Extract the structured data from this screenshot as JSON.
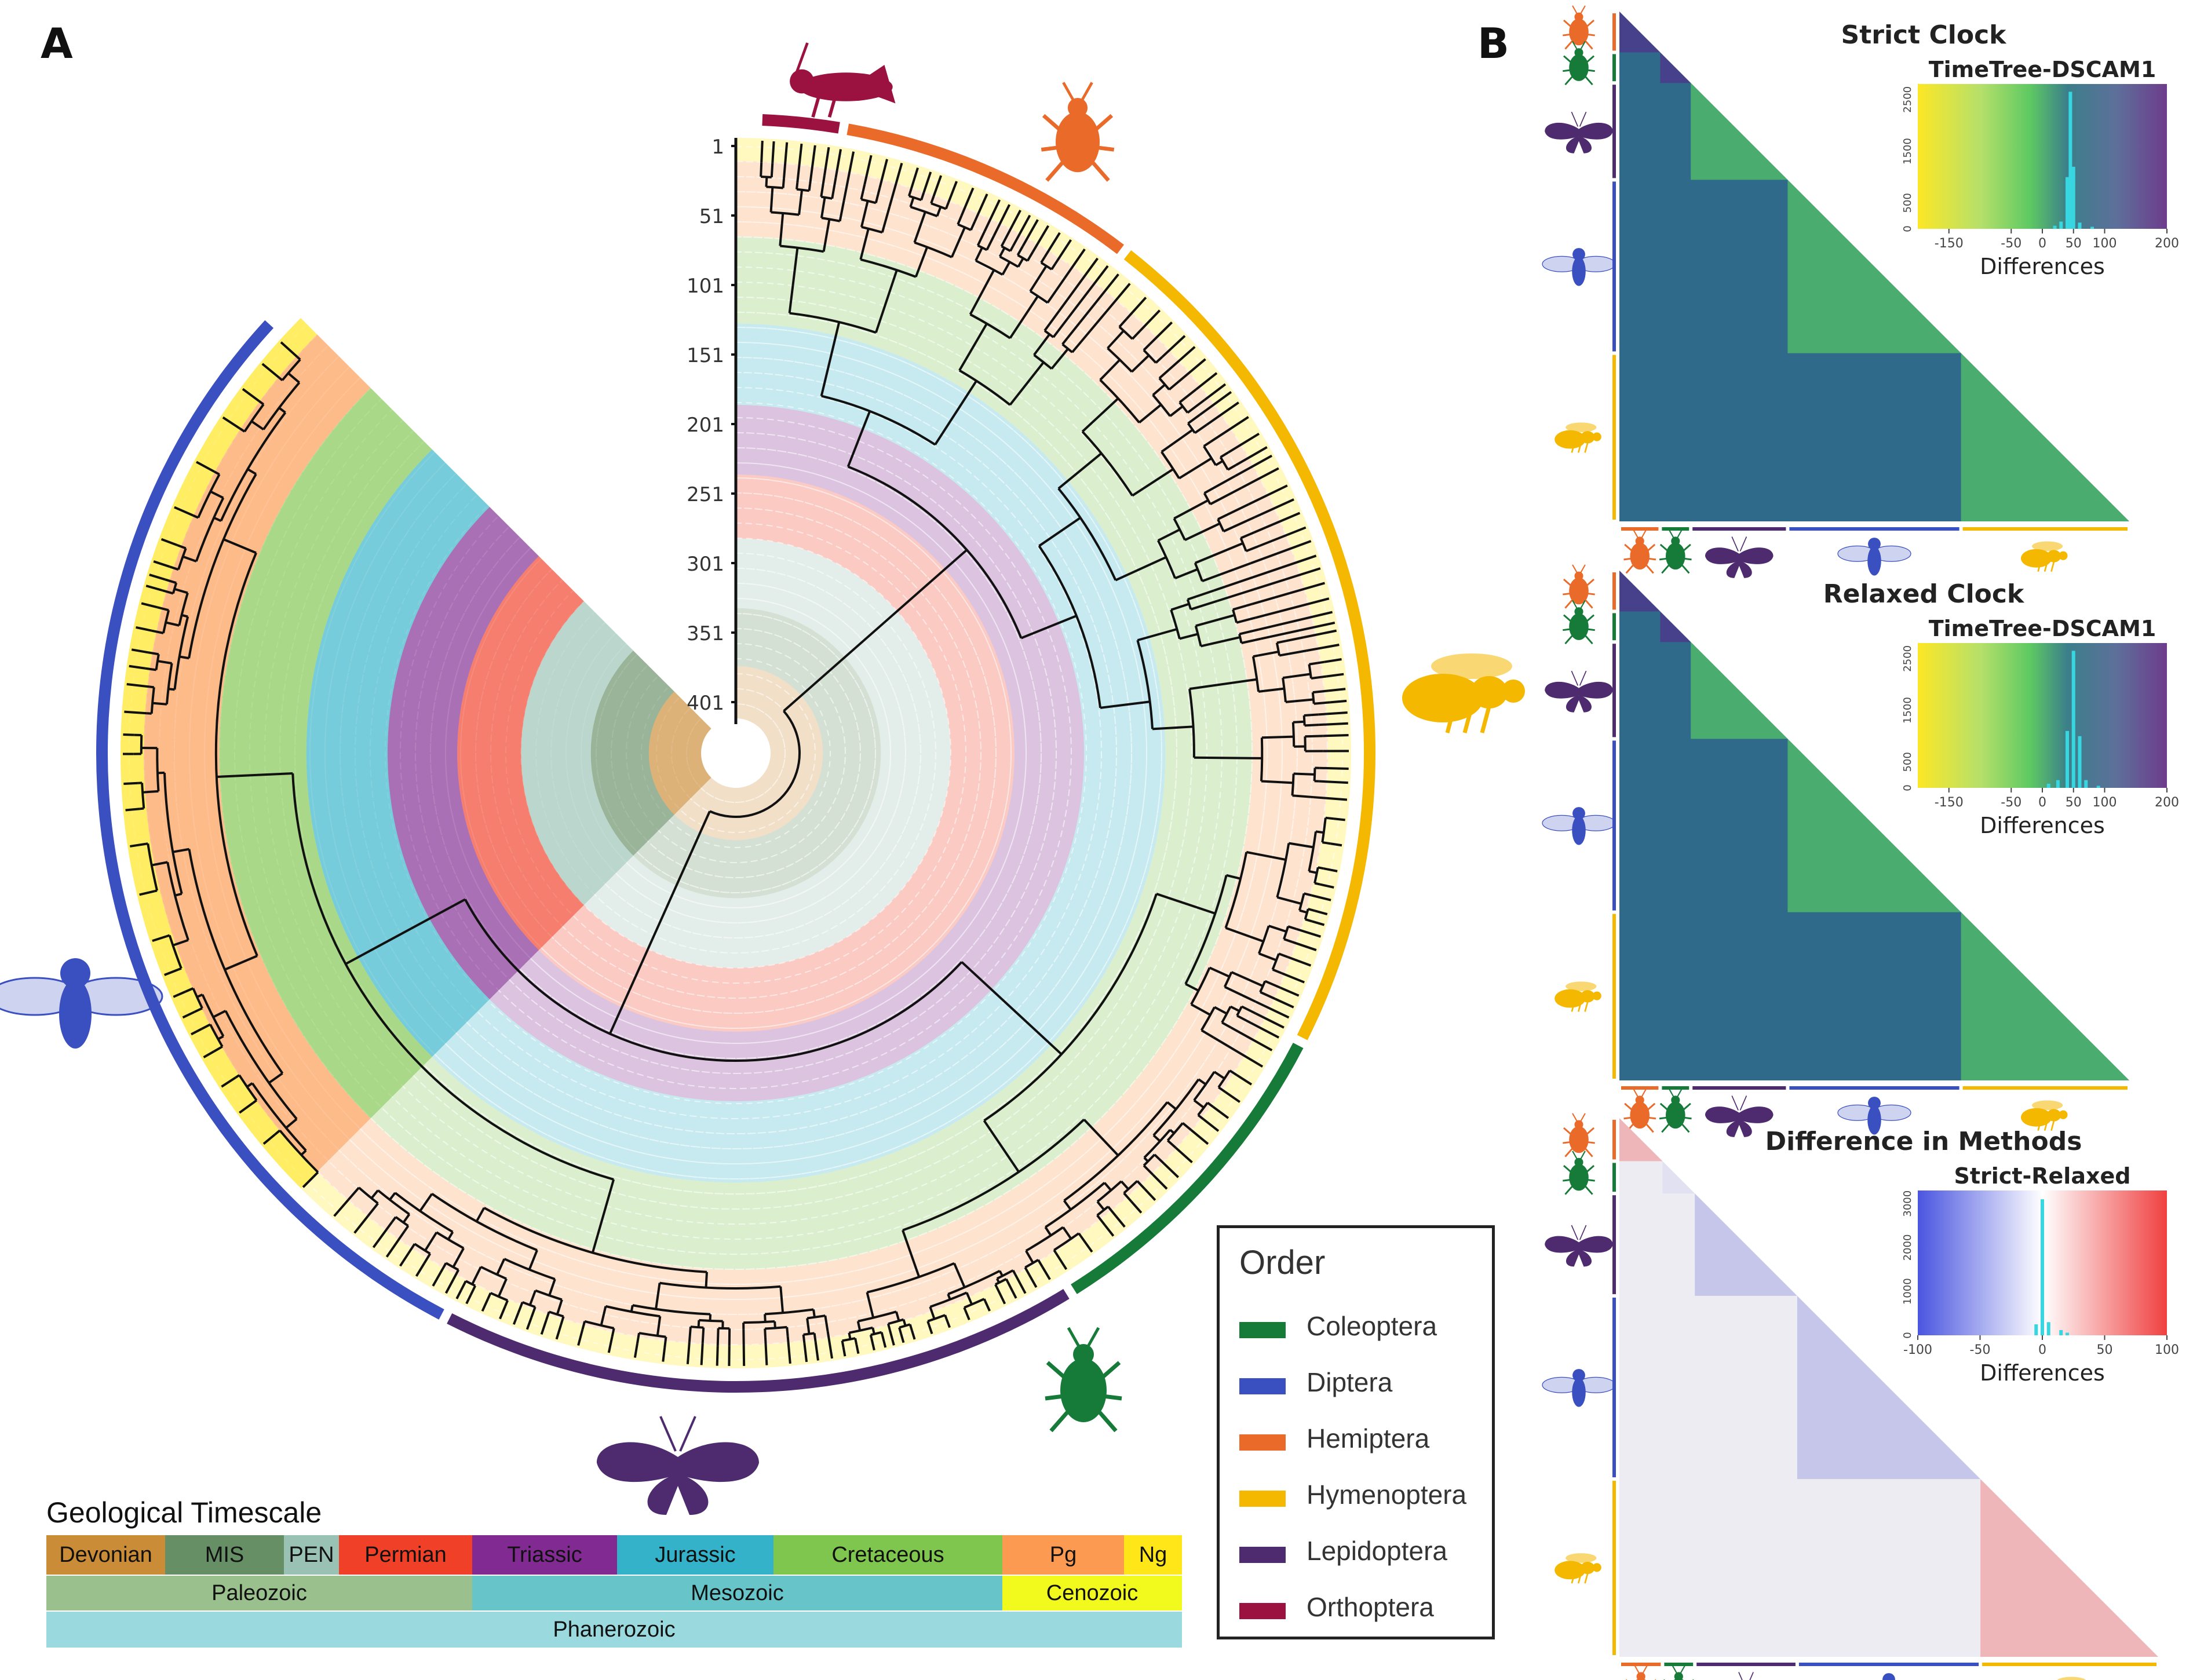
{
  "panels": {
    "a_label": "A",
    "b_label": "B"
  },
  "colors": {
    "Coleoptera": "#167a39",
    "Diptera": "#3a4fc0",
    "Hemiptera": "#ea6a2a",
    "Hymenoptera": "#f4b800",
    "Lepidoptera": "#4e2a6e",
    "Orthoptera": "#9b1240"
  },
  "chart_data": [
    {
      "type": "other",
      "subtype": "circular-phylogenetic-tree",
      "radial_axis_ticks": [
        "1",
        "51",
        "101",
        "151",
        "201",
        "251",
        "301",
        "351",
        "401"
      ],
      "geological_bands_center_to_rim": [
        "Devonian",
        "MIS",
        "PEN",
        "Permian",
        "Triassic",
        "Jurassic",
        "Cretaceous",
        "Pg",
        "Ng"
      ],
      "order_arcs": [
        {
          "order": "Orthoptera",
          "color": "#9b1240"
        },
        {
          "order": "Hemiptera",
          "color": "#ea6a2a"
        },
        {
          "order": "Hymenoptera",
          "color": "#f4b800"
        },
        {
          "order": "Coleoptera",
          "color": "#167a39"
        },
        {
          "order": "Lepidoptera",
          "color": "#4e2a6e"
        },
        {
          "order": "Diptera",
          "color": "#3a4fc0"
        }
      ],
      "legend": {
        "title": "Order",
        "entries": [
          {
            "label": "Coleoptera",
            "color": "#167a39"
          },
          {
            "label": "Diptera",
            "color": "#3a4fc0"
          },
          {
            "label": "Hemiptera",
            "color": "#ea6a2a"
          },
          {
            "label": "Hymenoptera",
            "color": "#f4b800"
          },
          {
            "label": "Lepidoptera",
            "color": "#4e2a6e"
          },
          {
            "label": "Orthoptera",
            "color": "#9b1240"
          }
        ]
      },
      "geological_timescale": {
        "title": "Geological Timescale",
        "periods": [
          {
            "label": "Devonian",
            "color": "#cb8c37"
          },
          {
            "label": "MIS",
            "color": "#678f66"
          },
          {
            "label": "PEN",
            "color": "#99c2b5"
          },
          {
            "label": "Permian",
            "color": "#f04028"
          },
          {
            "label": "Triassic",
            "color": "#812b92"
          },
          {
            "label": "Jurassic",
            "color": "#34b2c9"
          },
          {
            "label": "Cretaceous",
            "color": "#7fc64e"
          },
          {
            "label": "Pg",
            "color": "#fd9a52"
          },
          {
            "label": "Ng",
            "color": "#ffe619"
          }
        ],
        "eras": [
          {
            "label": "Paleozoic",
            "color": "#99c08d"
          },
          {
            "label": "Mesozoic",
            "color": "#67c5ca"
          },
          {
            "label": "Cenozoic",
            "color": "#f2f91d"
          }
        ],
        "eon": {
          "label": "Phanerozoic",
          "color": "#9ad9dd"
        }
      }
    },
    {
      "type": "heatmap",
      "title": "Strict Clock",
      "inset": {
        "title": "TimeTree-DSCAM1",
        "type": "histogram",
        "xlabel": "Differences",
        "xlim": [
          -200,
          200
        ],
        "x_ticks": [
          "-150",
          "-50",
          "0",
          "50",
          "100",
          "200"
        ],
        "y_ticks": [
          "0",
          "500",
          "1500",
          "2500"
        ],
        "ylim": [
          0,
          2800
        ],
        "bins": [
          {
            "x": 20,
            "count": 60
          },
          {
            "x": 30,
            "count": 140
          },
          {
            "x": 40,
            "count": 1000
          },
          {
            "x": 45,
            "count": 2650
          },
          {
            "x": 50,
            "count": 1200
          },
          {
            "x": 60,
            "count": 120
          },
          {
            "x": 80,
            "count": 40
          }
        ]
      }
    },
    {
      "type": "heatmap",
      "title": "Relaxed Clock",
      "inset": {
        "title": "TimeTree-DSCAM1",
        "type": "histogram",
        "xlabel": "Differences",
        "xlim": [
          -200,
          200
        ],
        "x_ticks": [
          "-150",
          "-50",
          "0",
          "50",
          "100",
          "200"
        ],
        "y_ticks": [
          "0",
          "500",
          "1500",
          "2500"
        ],
        "ylim": [
          0,
          2800
        ],
        "bins": [
          {
            "x": 10,
            "count": 80
          },
          {
            "x": 25,
            "count": 150
          },
          {
            "x": 40,
            "count": 1100
          },
          {
            "x": 50,
            "count": 2650
          },
          {
            "x": 60,
            "count": 1000
          },
          {
            "x": 70,
            "count": 150
          },
          {
            "x": 90,
            "count": 40
          }
        ]
      }
    },
    {
      "type": "heatmap",
      "title": "Difference in Methods",
      "inset": {
        "title": "Strict-Relaxed",
        "type": "histogram",
        "xlabel": "Differences",
        "xlim": [
          -100,
          100
        ],
        "x_ticks": [
          "-100",
          "-50",
          "0",
          "50",
          "100"
        ],
        "y_ticks": [
          "0",
          "1000",
          "2000",
          "3000"
        ],
        "ylim": [
          0,
          3300
        ],
        "bins": [
          {
            "x": -5,
            "count": 250
          },
          {
            "x": 0,
            "count": 3100
          },
          {
            "x": 5,
            "count": 300
          },
          {
            "x": 15,
            "count": 120
          },
          {
            "x": 20,
            "count": 60
          }
        ]
      }
    }
  ]
}
